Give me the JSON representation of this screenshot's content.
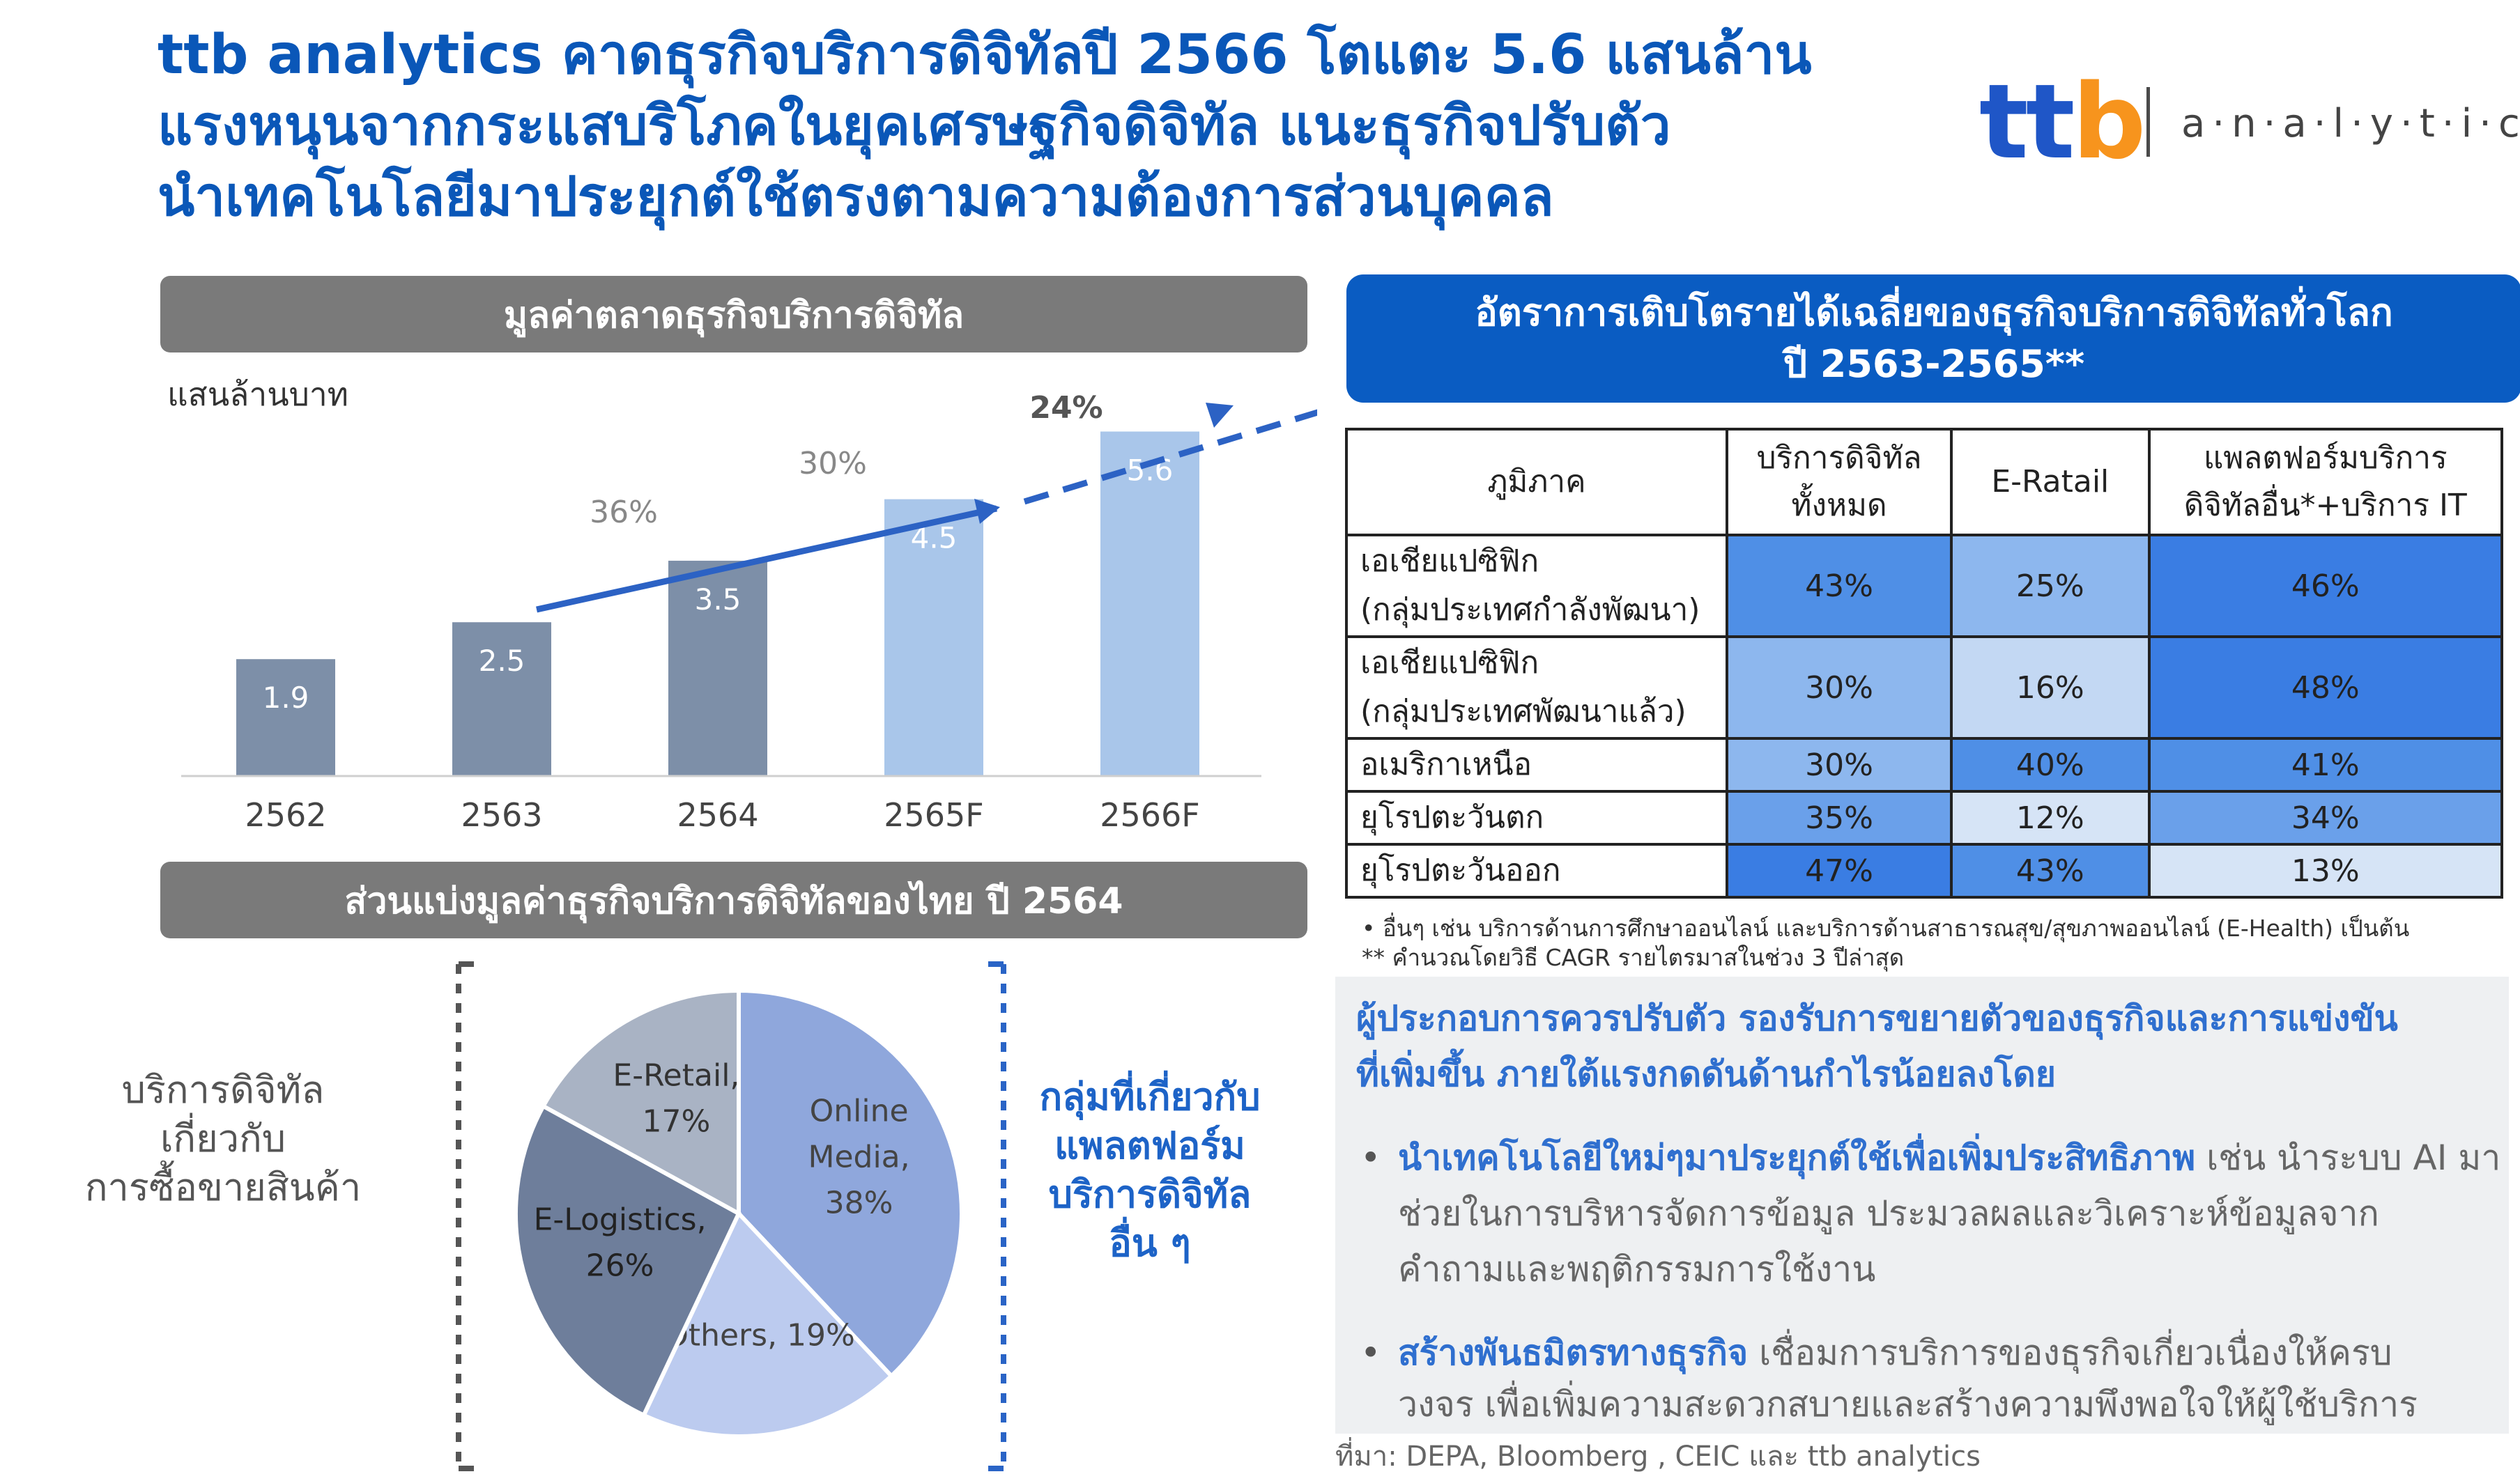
{
  "header": {
    "line1": "ttb analytics คาดธุรกิจบริการดิจิทัลปี 2566 โตแตะ 5.6 แสนล้าน",
    "line2": "แรงหนุนจากกระแสบริโภคในยุคเศรษฐกิจดิจิทัล แนะธุรกิจปรับตัว",
    "line3": "นำเทคโนโลยีมาประยุกต์ใช้ตรงตามความต้องการส่วนบุคคล"
  },
  "logo": {
    "ttb_t": "tt",
    "ttb_b": "b",
    "analytics": "a·n·a·l·y·t·i·c·s"
  },
  "bar_section": {
    "title": "มูลค่าตลาดธุรกิจบริการดิจิทัล",
    "unit": "แสนล้านบาท"
  },
  "pie_section": {
    "title": "ส่วนแบ่งมูลค่าธุรกิจบริการดิจิทัลของไทย ปี 2564",
    "left_label": [
      "บริการดิจิทัล",
      "เกี่ยวกับ",
      "การซื้อขายสินค้า"
    ],
    "right_label": [
      "กลุ่มที่เกี่ยวกับ",
      "แพลตฟอร์ม",
      "บริการดิจิทัล",
      "อื่น ๆ"
    ]
  },
  "chart_data": [
    {
      "type": "bar",
      "categories": [
        "2562",
        "2563",
        "2564",
        "2565F",
        "2566F"
      ],
      "values": [
        1.9,
        2.5,
        3.5,
        4.5,
        5.6
      ],
      "value_labels": [
        "1.9",
        "2.5",
        "3.5",
        "4.5",
        "5.6"
      ],
      "colors": [
        "#7d8fa8",
        "#7d8fa8",
        "#7d8fa8",
        "#a9c6ea",
        "#a9c6ea"
      ],
      "title": "มูลค่าตลาดธุรกิจบริการดิจิทัล",
      "ylabel": "แสนล้านบาท",
      "ylim": [
        0,
        6.5
      ],
      "growth_labels": [
        "36%",
        "30%",
        "24%"
      ]
    },
    {
      "type": "pie",
      "slices": [
        {
          "label": "Online Media, 38%",
          "lines": [
            "Online",
            "Media,",
            "38%"
          ],
          "value": 38,
          "color": "#8fa7dc"
        },
        {
          "label": "Others, 19%",
          "lines": [
            "Others, 19%"
          ],
          "value": 19,
          "color": "#bccbef"
        },
        {
          "label": "E-Logistics, 26%",
          "lines": [
            "E-Logistics,",
            "26%"
          ],
          "value": 26,
          "color": "#6e7e9b"
        },
        {
          "label": "E-Retail, 17%",
          "lines": [
            "E-Retail,",
            "17%"
          ],
          "value": 17,
          "color": "#a9b3c4"
        }
      ]
    },
    {
      "type": "table",
      "title_line1": "อัตราการเติบโตรายได้เฉลี่ยของธุรกิจบริการดิจิทัลทั่วโลก",
      "title_line2": "ปี 2563-2565**",
      "header": {
        "region": "ภูมิภาค",
        "col1_line1": "บริการดิจิทัล",
        "col1_line2": "ทั้งหมด",
        "col2": "E-Ratail",
        "col3_line1": "แพลตฟอร์มบริการ",
        "col3_line2": "ดิจิทัลอื่น*+บริการ IT"
      },
      "rows": [
        {
          "region_line1": "เอเชียแปซิฟิก",
          "region_line2": "(กลุ่มประเทศกำลังพัฒนา)",
          "values": [
            "43%",
            "25%",
            "46%"
          ],
          "colors": [
            "#4f8fe6",
            "#8db7ee",
            "#3a7de3"
          ]
        },
        {
          "region_line1": "เอเชียแปซิฟิก",
          "region_line2": "(กลุ่มประเทศพัฒนาแล้ว)",
          "values": [
            "30%",
            "16%",
            "48%"
          ],
          "colors": [
            "#8db7ee",
            "#c3d8f3",
            "#3a7de3"
          ]
        },
        {
          "region_line1": "อเมริกาเหนือ",
          "region_line2": "",
          "values": [
            "30%",
            "40%",
            "41%"
          ],
          "colors": [
            "#8db7ee",
            "#4f8fe6",
            "#4f8fe6"
          ]
        },
        {
          "region_line1": "ยุโรปตะวันตก",
          "region_line2": "",
          "values": [
            "35%",
            "12%",
            "34%"
          ],
          "colors": [
            "#6aa0ea",
            "#d6e4f6",
            "#6aa0ea"
          ]
        },
        {
          "region_line1": "ยุโรปตะวันออก",
          "region_line2": "",
          "values": [
            "47%",
            "43%",
            "13%"
          ],
          "colors": [
            "#3a7de3",
            "#4f8fe6",
            "#d6e4f6"
          ]
        }
      ]
    }
  ],
  "notes": {
    "n1": "•     อื่นๆ เช่น บริการด้านการศึกษาออนไลน์ และบริการด้านสาธารณสุข/สุขภาพออนไลน์ (E-Health) เป็นต้น",
    "n2": "**  คำนวณโดยวิธี CAGR รายไตรมาสในช่วง 3 ปีล่าสุด"
  },
  "advice": {
    "intro_line1": "ผู้ประกอบการควรปรับตัว รองรับการขยายตัวของธุรกิจและการแข่งขัน",
    "intro_line2": "ที่เพิ่มขึ้น ภายใต้แรงกดดันด้านกำไรน้อยลงโดย",
    "b1_bold": "นำเทคโนโลยีใหม่ๆมาประยุกต์ใช้เพื่อเพิ่มประสิทธิภาพ",
    "b1_rest": " เช่น นำระบบ AI มา",
    "b1_line2": "ช่วยในการบริหารจัดการข้อมูล ประมวลผลและวิเคราะห์ข้อมูลจาก",
    "b1_line3": "คำถามและพฤติกรรมการใช้งาน",
    "b2_bold": "สร้างพันธมิตรทางธุรกิจ",
    "b2_rest": " เชื่อมการบริการของธุรกิจเกี่ยวเนื่องให้ครบ",
    "b2_line2": "วงจร เพื่อเพิ่มความสะดวกสบายและสร้างความพึงพอใจให้ผู้ใช้บริการ",
    "bullet": "•"
  },
  "source": "ที่มา: DEPA, Bloomberg , CEIC และ ttb analytics"
}
